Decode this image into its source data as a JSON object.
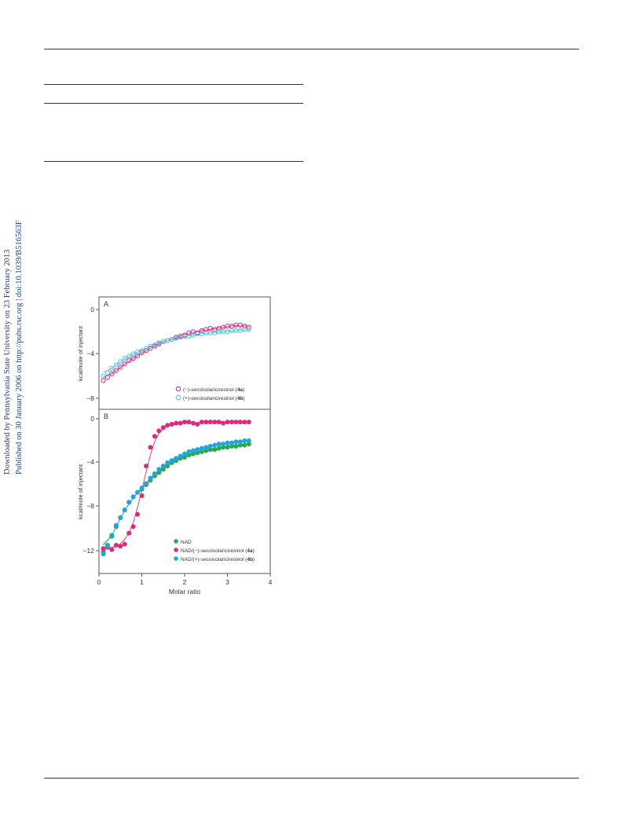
{
  "sidebar": {
    "line1": "Downloaded by Pennsylvania State University on 23 February 2013",
    "line2": "Published on 30 January 2006 on http://pubs.rsc.org | doi:10.1039/B516563F"
  },
  "colors": {
    "series_4a": "#e0287f",
    "series_4b": "#4fc3e0",
    "nad": "#2aa84a",
    "nad_4b": "#1ea6e0",
    "sidebar_text": "#1f3fa3"
  },
  "chart_data": [
    {
      "panel": "A",
      "type": "scatter",
      "ylabel": "kcal/mole of injectant",
      "yticks": [
        0,
        -4,
        -8
      ],
      "ylim": [
        -8.8,
        0.5
      ],
      "xlim": [
        0,
        4
      ],
      "legend_position": "bottom-right",
      "series": [
        {
          "name": "(−)-secoisolariciresinol (4a)",
          "label_main": "(−)-secoisolariciresinol (",
          "label_bold": "4a",
          "label_end": ")",
          "marker": "open-circle",
          "x": [
            0.1,
            0.2,
            0.3,
            0.4,
            0.5,
            0.6,
            0.7,
            0.8,
            0.9,
            1.0,
            1.1,
            1.2,
            1.3,
            1.4,
            1.5,
            1.6,
            1.7,
            1.8,
            1.9,
            2.0,
            2.1,
            2.2,
            2.3,
            2.4,
            2.5,
            2.6,
            2.7,
            2.8,
            2.9,
            3.0,
            3.1,
            3.2,
            3.3,
            3.4,
            3.5
          ],
          "y": [
            -6.4,
            -6.1,
            -5.8,
            -5.5,
            -5.2,
            -4.9,
            -4.6,
            -4.4,
            -4.2,
            -3.9,
            -3.7,
            -3.5,
            -3.3,
            -3.1,
            -2.9,
            -2.8,
            -2.7,
            -2.5,
            -2.4,
            -2.3,
            -2.1,
            -2.0,
            -2.1,
            -1.9,
            -1.8,
            -1.7,
            -1.8,
            -1.7,
            -1.6,
            -1.5,
            -1.5,
            -1.4,
            -1.4,
            -1.5,
            -1.6
          ]
        },
        {
          "name": "(+)-secoisolariciresinol (4b)",
          "label_main": "(+)-secoisolariciresinol (",
          "label_bold": "4b",
          "label_end": ")",
          "marker": "open-circle",
          "x": [
            0.1,
            0.2,
            0.3,
            0.4,
            0.5,
            0.6,
            0.7,
            0.8,
            0.9,
            1.0,
            1.1,
            1.2,
            1.3,
            1.4,
            1.5,
            1.6,
            1.7,
            1.8,
            1.9,
            2.0,
            2.1,
            2.2,
            2.3,
            2.4,
            2.5,
            2.6,
            2.7,
            2.8,
            2.9,
            3.0,
            3.1,
            3.2,
            3.3,
            3.4,
            3.5
          ],
          "y": [
            -6.0,
            -5.7,
            -5.3,
            -5.0,
            -4.7,
            -4.4,
            -4.2,
            -4.0,
            -3.8,
            -3.7,
            -3.5,
            -3.3,
            -3.2,
            -3.0,
            -2.9,
            -2.8,
            -2.7,
            -2.6,
            -2.5,
            -2.4,
            -2.4,
            -2.3,
            -2.2,
            -2.2,
            -2.1,
            -2.1,
            -2.1,
            -2.0,
            -2.0,
            -2.0,
            -1.9,
            -1.9,
            -1.9,
            -1.8,
            -1.8
          ]
        }
      ]
    },
    {
      "panel": "B",
      "type": "scatter",
      "ylabel": "kcal/mole of injectant",
      "xlabel": "Molar ratio",
      "yticks": [
        0,
        -4,
        -8,
        -12
      ],
      "xticks": [
        0,
        1,
        2,
        3,
        4
      ],
      "ylim": [
        -14,
        0.8
      ],
      "xlim": [
        0,
        4
      ],
      "legend_position": "bottom-right",
      "series": [
        {
          "name": "NAD",
          "label_main": "NAD",
          "label_bold": "",
          "label_end": "",
          "marker": "filled-circle",
          "x": [
            0.1,
            0.2,
            0.3,
            0.4,
            0.5,
            0.6,
            0.7,
            0.8,
            0.9,
            1.0,
            1.1,
            1.2,
            1.3,
            1.4,
            1.5,
            1.6,
            1.7,
            1.8,
            1.9,
            2.0,
            2.1,
            2.2,
            2.3,
            2.4,
            2.5,
            2.6,
            2.7,
            2.8,
            2.9,
            3.0,
            3.1,
            3.2,
            3.3,
            3.4,
            3.5
          ],
          "y": [
            -12.1,
            -11.5,
            -10.7,
            -9.8,
            -9.0,
            -8.3,
            -7.6,
            -7.1,
            -6.7,
            -6.4,
            -6.0,
            -5.6,
            -5.2,
            -4.9,
            -4.6,
            -4.3,
            -4.0,
            -3.8,
            -3.6,
            -3.5,
            -3.3,
            -3.2,
            -3.1,
            -3.0,
            -2.9,
            -2.8,
            -2.8,
            -2.7,
            -2.6,
            -2.6,
            -2.5,
            -2.5,
            -2.4,
            -2.4,
            -2.3
          ]
        },
        {
          "name": "NAD/(−)-secoisolariciresinol (4a)",
          "label_main": "NAD/(−)-secoisolariciresinol (",
          "label_bold": "4a",
          "label_end": ")",
          "marker": "filled-circle",
          "x": [
            0.1,
            0.2,
            0.3,
            0.4,
            0.5,
            0.6,
            0.7,
            0.8,
            0.9,
            1.0,
            1.1,
            1.2,
            1.3,
            1.4,
            1.5,
            1.6,
            1.7,
            1.8,
            1.9,
            2.0,
            2.1,
            2.2,
            2.3,
            2.4,
            2.5,
            2.6,
            2.7,
            2.8,
            2.9,
            3.0,
            3.1,
            3.2,
            3.3,
            3.4,
            3.5
          ],
          "y": [
            -11.8,
            -11.7,
            -11.9,
            -11.5,
            -11.6,
            -11.4,
            -10.4,
            -9.8,
            -8.7,
            -7.0,
            -4.3,
            -2.6,
            -1.6,
            -1.1,
            -0.8,
            -0.6,
            -0.5,
            -0.4,
            -0.4,
            -0.3,
            -0.3,
            -0.4,
            -0.5,
            -0.3,
            -0.3,
            -0.3,
            -0.3,
            -0.3,
            -0.4,
            -0.3,
            -0.3,
            -0.3,
            -0.3,
            -0.3,
            -0.3
          ]
        },
        {
          "name": "NAD/(+)-secoisolariciresinol (4b)",
          "label_main": "NAD/(+)-secoisolariciresinol (",
          "label_bold": "4b",
          "label_end": ")",
          "marker": "filled-circle",
          "x": [
            0.1,
            0.2,
            0.3,
            0.4,
            0.5,
            0.6,
            0.7,
            0.8,
            0.9,
            1.0,
            1.1,
            1.2,
            1.3,
            1.4,
            1.5,
            1.6,
            1.7,
            1.8,
            1.9,
            2.0,
            2.1,
            2.2,
            2.3,
            2.4,
            2.5,
            2.6,
            2.7,
            2.8,
            2.9,
            3.0,
            3.1,
            3.2,
            3.3,
            3.4,
            3.5
          ],
          "y": [
            -12.3,
            -11.6,
            -10.6,
            -9.7,
            -9.0,
            -8.3,
            -7.6,
            -7.1,
            -6.7,
            -6.3,
            -5.9,
            -5.4,
            -5.0,
            -4.6,
            -4.3,
            -4.0,
            -3.8,
            -3.6,
            -3.4,
            -3.2,
            -3.0,
            -2.9,
            -2.8,
            -2.7,
            -2.6,
            -2.5,
            -2.4,
            -2.3,
            -2.3,
            -2.2,
            -2.2,
            -2.1,
            -2.1,
            -2.0,
            -2.0
          ]
        }
      ]
    }
  ]
}
